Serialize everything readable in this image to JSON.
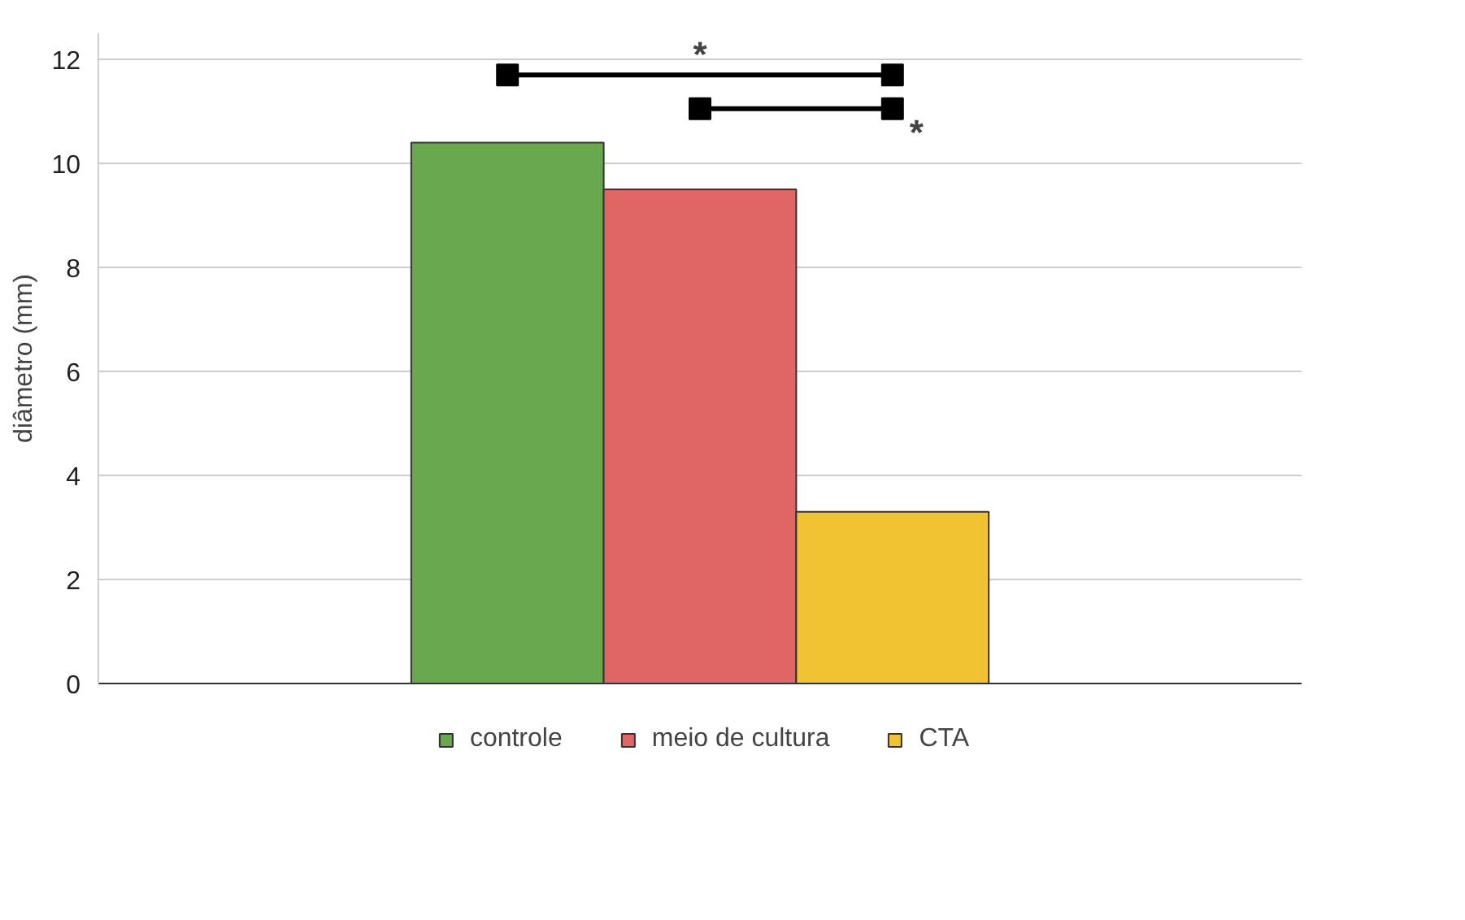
{
  "chart_data": {
    "type": "bar",
    "ylabel": "diâmetro (mm)",
    "categories": [
      null
    ],
    "series": [
      {
        "name": "controle",
        "color": "#6aa84f",
        "values": [
          10.4
        ]
      },
      {
        "name": "meio de cultura",
        "color": "#e06666",
        "values": [
          9.5
        ]
      },
      {
        "name": "CTA",
        "color": "#f1c232",
        "values": [
          3.3
        ]
      }
    ],
    "ylim": [
      0,
      12.5
    ],
    "yticks": [
      0,
      2,
      4,
      6,
      8,
      10,
      12
    ],
    "grid": "y",
    "legend": "bottom",
    "tick_labels": "y",
    "annotations": [
      "*",
      "*"
    ]
  }
}
